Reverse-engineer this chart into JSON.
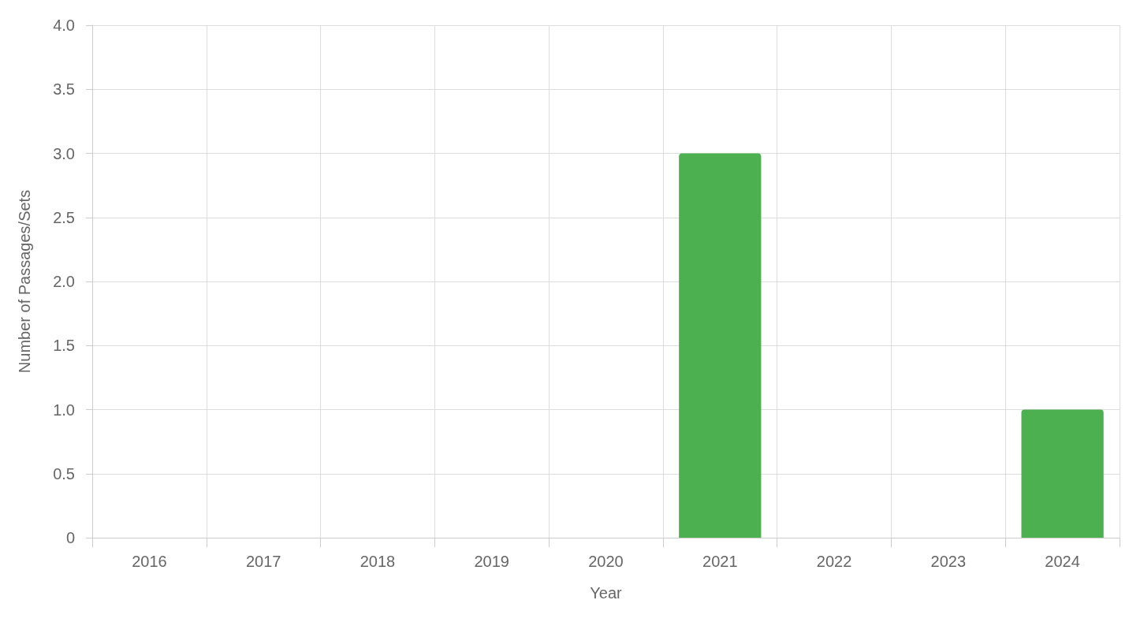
{
  "chart_data": {
    "type": "bar",
    "xlabel": "Year",
    "ylabel": "Number of Passages/Sets",
    "categories": [
      "2016",
      "2017",
      "2018",
      "2019",
      "2020",
      "2021",
      "2022",
      "2023",
      "2024"
    ],
    "values": [
      0,
      0,
      0,
      0,
      0,
      3,
      0,
      0,
      1
    ],
    "color": "#4caf50",
    "ylim": [
      0,
      4
    ],
    "yticks": [
      0,
      0.5,
      {
        "value": 1,
        "label": "1.0"
      },
      1.5,
      {
        "value": 2,
        "label": "2.0"
      },
      2.5,
      {
        "value": 3,
        "label": "3.0"
      },
      3.5,
      {
        "value": 4,
        "label": "4.0"
      }
    ],
    "grid": true
  }
}
